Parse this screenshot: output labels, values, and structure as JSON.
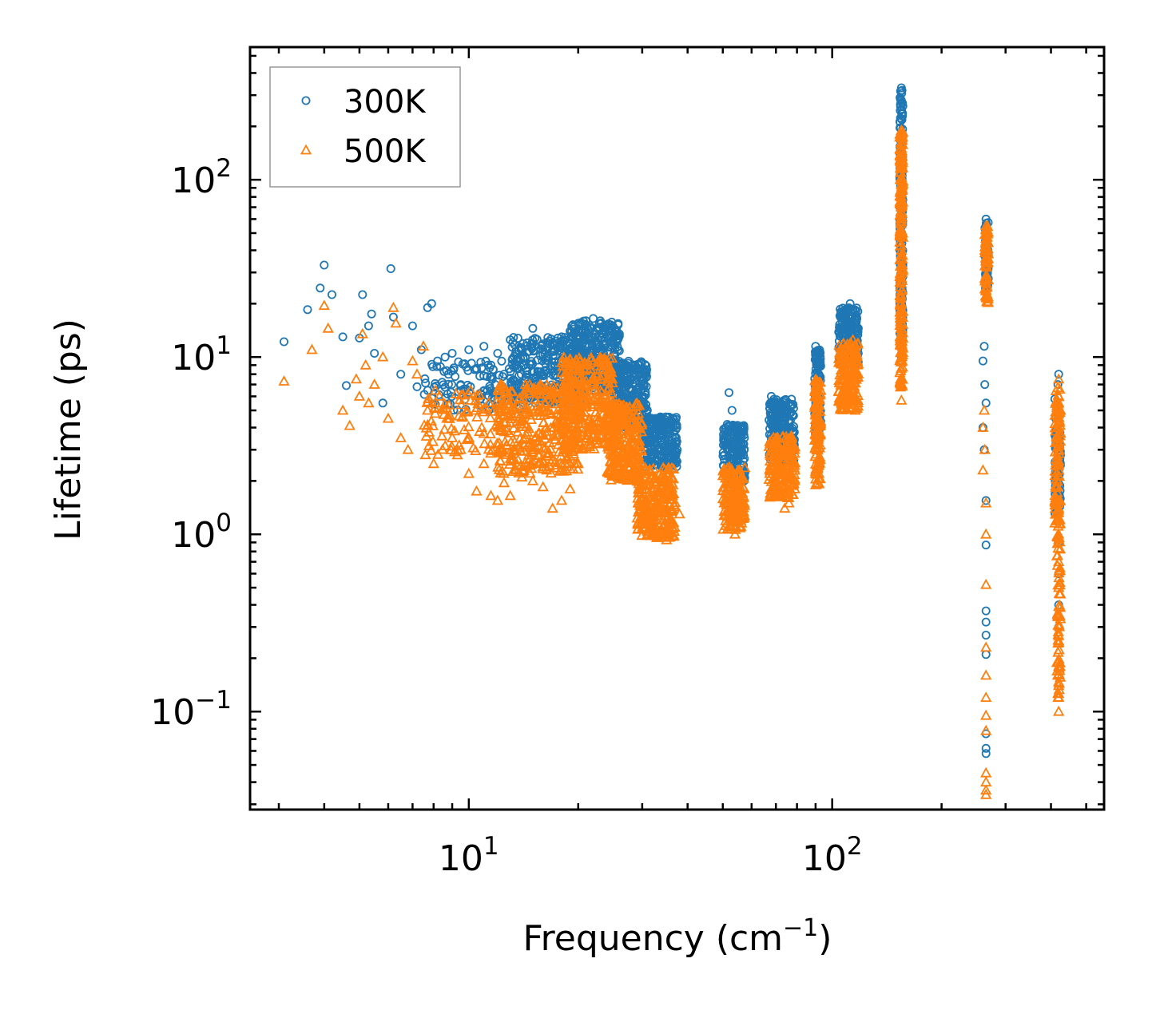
{
  "chart_data": {
    "type": "scatter",
    "xscale": "log",
    "yscale": "log",
    "xlabel": "Frequency (cm",
    "xlabel_sup": "−1",
    "xlabel_end": ")",
    "ylabel": "Lifetime (ps)",
    "xlim": [
      2.5,
      560
    ],
    "ylim": [
      0.028,
      560
    ],
    "x_ticks": [
      {
        "value": 10,
        "base": "10",
        "exp": "1"
      },
      {
        "value": 100,
        "base": "10",
        "exp": "2"
      }
    ],
    "y_ticks": [
      {
        "value": 0.1,
        "base": "10",
        "exp": "−1"
      },
      {
        "value": 1,
        "base": "10",
        "exp": "0"
      },
      {
        "value": 10,
        "base": "10",
        "exp": "1"
      },
      {
        "value": 100,
        "base": "10",
        "exp": "2"
      }
    ],
    "legend_position": "top-left",
    "series": [
      {
        "name": "300K",
        "marker": "circle",
        "color": "#1f77b4",
        "points": [
          [
            3.1,
            12.2
          ],
          [
            3.6,
            18.5
          ],
          [
            3.9,
            24.5
          ],
          [
            4.0,
            33.0
          ],
          [
            4.2,
            22.5
          ],
          [
            4.5,
            13.0
          ],
          [
            4.6,
            6.9
          ],
          [
            5.0,
            12.8
          ],
          [
            5.1,
            22.5
          ],
          [
            5.3,
            15.0
          ],
          [
            5.4,
            17.5
          ],
          [
            5.5,
            10.5
          ],
          [
            5.8,
            5.5
          ],
          [
            6.1,
            31.5
          ],
          [
            6.2,
            16.8
          ],
          [
            6.5,
            8.0
          ],
          [
            7.0,
            15.0
          ],
          [
            7.2,
            6.8
          ],
          [
            7.4,
            11.0
          ],
          [
            7.7,
            19.0
          ],
          [
            7.9,
            20.0
          ],
          [
            8.2,
            9.5
          ],
          [
            8.6,
            10.0
          ],
          [
            9.0,
            10.5
          ],
          [
            9.5,
            7.0
          ],
          [
            10.0,
            11.0
          ],
          [
            10.5,
            8.5
          ],
          [
            11.0,
            11.5
          ],
          [
            11.5,
            9.0
          ],
          [
            12.0,
            10.5
          ],
          [
            12.5,
            8.0
          ],
          [
            13.0,
            12.5
          ],
          [
            13.5,
            9.5
          ],
          [
            14.0,
            11.0
          ],
          [
            15.0,
            14.5
          ],
          [
            16.0,
            11.0
          ],
          [
            17.0,
            12.0
          ],
          [
            18.0,
            13.0
          ],
          [
            19.0,
            14.0
          ],
          [
            20.0,
            15.5
          ],
          [
            21.0,
            16.0
          ],
          [
            22.0,
            16.5
          ],
          [
            23.0,
            16.0
          ],
          [
            24.0,
            15.0
          ],
          [
            25.0,
            12.0
          ],
          [
            27.0,
            8.5
          ],
          [
            29.0,
            6.5
          ],
          [
            31.0,
            5.0
          ],
          [
            33.0,
            4.5
          ],
          [
            35.0,
            4.2
          ],
          [
            37.0,
            3.5
          ],
          [
            52.0,
            6.3
          ],
          [
            53.0,
            5.0
          ],
          [
            54.0,
            4.0
          ],
          [
            55.0,
            3.8
          ],
          [
            56.0,
            3.2
          ],
          [
            57.0,
            2.8
          ],
          [
            68.0,
            6.0
          ],
          [
            70.0,
            5.5
          ],
          [
            72.0,
            5.2
          ],
          [
            74.0,
            4.8
          ],
          [
            76.0,
            4.4
          ],
          [
            78.0,
            3.5
          ],
          [
            90.0,
            11.5
          ],
          [
            91.0,
            10.5
          ],
          [
            92.0,
            9.5
          ],
          [
            105.0,
            14.5
          ],
          [
            108.0,
            16.0
          ],
          [
            110.0,
            18.0
          ],
          [
            112.0,
            20.0
          ],
          [
            114.0,
            17.0
          ],
          [
            118.0,
            14.5
          ],
          [
            155.0,
            330.0
          ],
          [
            155.0,
            280.0
          ],
          [
            155.0,
            220.0
          ],
          [
            155.0,
            150.0
          ],
          [
            155.0,
            80.0
          ],
          [
            155.0,
            40.0
          ],
          [
            155.0,
            20.0
          ],
          [
            155.0,
            10.0
          ],
          [
            265.0,
            60.0
          ],
          [
            265.0,
            48.0
          ],
          [
            265.0,
            38.0
          ],
          [
            265.0,
            30.0
          ],
          [
            262.0,
            11.5
          ],
          [
            260.0,
            9.5
          ],
          [
            263.0,
            7.0
          ],
          [
            265.0,
            5.5
          ],
          [
            260.0,
            4.0
          ],
          [
            262.0,
            3.0
          ],
          [
            265.0,
            1.55
          ],
          [
            265.0,
            0.87
          ],
          [
            265.0,
            0.37
          ],
          [
            265.0,
            0.32
          ],
          [
            265.0,
            0.27
          ],
          [
            265.0,
            0.21
          ],
          [
            265.0,
            0.075
          ],
          [
            265.0,
            0.062
          ],
          [
            265.0,
            0.058
          ],
          [
            420.0,
            8.0
          ],
          [
            418.0,
            7.0
          ],
          [
            410.0,
            5.8
          ],
          [
            412.0,
            4.5
          ],
          [
            420.0,
            3.5
          ],
          [
            425.0,
            2.8
          ],
          [
            420.0,
            2.2
          ],
          [
            420.0,
            1.5
          ],
          [
            420.0,
            0.9
          ],
          [
            420.0,
            0.6
          ],
          [
            420.0,
            0.4
          ],
          [
            420.0,
            0.3
          ]
        ],
        "clusters": [
          {
            "x": [
              7.5,
              14
            ],
            "y": [
              5.0,
              9.5
            ],
            "n": 110
          },
          {
            "x": [
              13,
              21
            ],
            "y": [
              5.5,
              13.0
            ],
            "n": 300
          },
          {
            "x": [
              19,
              26
            ],
            "y": [
              6.5,
              16.0
            ],
            "n": 320
          },
          {
            "x": [
              25,
              31
            ],
            "y": [
              4.0,
              9.5
            ],
            "n": 260
          },
          {
            "x": [
              30,
              37.5
            ],
            "y": [
              2.4,
              4.6
            ],
            "n": 240
          },
          {
            "x": [
              50,
              57.5
            ],
            "y": [
              2.0,
              4.2
            ],
            "n": 170
          },
          {
            "x": [
              67,
              79
            ],
            "y": [
              2.6,
              5.8
            ],
            "n": 200
          },
          {
            "x": [
              89.5,
              93
            ],
            "y": [
              3.5,
              11.0
            ],
            "n": 120
          },
          {
            "x": [
              104,
              118
            ],
            "y": [
              9.0,
              19.0
            ],
            "n": 170
          },
          {
            "x": [
              153.5,
              156.5
            ],
            "y": [
              12.0,
              320.0
            ],
            "n": 220
          },
          {
            "x": [
              263,
              269
            ],
            "y": [
              24.0,
              58.0
            ],
            "n": 60
          },
          {
            "x": [
              410,
              425
            ],
            "y": [
              1.3,
              4.0
            ],
            "n": 90
          }
        ]
      },
      {
        "name": "500K",
        "marker": "triangle",
        "color": "#ff7f0e",
        "points": [
          [
            3.1,
            7.3
          ],
          [
            3.7,
            11.0
          ],
          [
            4.0,
            19.5
          ],
          [
            4.1,
            14.5
          ],
          [
            4.5,
            5.0
          ],
          [
            4.7,
            4.1
          ],
          [
            4.9,
            7.5
          ],
          [
            5.0,
            6.0
          ],
          [
            5.1,
            13.5
          ],
          [
            5.2,
            9.0
          ],
          [
            5.3,
            5.5
          ],
          [
            5.5,
            7.0
          ],
          [
            5.8,
            10.0
          ],
          [
            6.0,
            4.5
          ],
          [
            6.2,
            19.0
          ],
          [
            6.3,
            15.5
          ],
          [
            6.5,
            3.5
          ],
          [
            6.8,
            3.0
          ],
          [
            7.0,
            9.5
          ],
          [
            7.2,
            8.0
          ],
          [
            7.5,
            11.5
          ],
          [
            7.7,
            5.0
          ],
          [
            8.0,
            2.5
          ],
          [
            8.3,
            6.0
          ],
          [
            8.7,
            4.5
          ],
          [
            9.0,
            3.5
          ],
          [
            9.3,
            2.8
          ],
          [
            9.5,
            3.0
          ],
          [
            10.0,
            2.2
          ],
          [
            10.5,
            1.75
          ],
          [
            11.0,
            2.5
          ],
          [
            11.5,
            1.65
          ],
          [
            12.0,
            1.55
          ],
          [
            12.5,
            1.95
          ],
          [
            13.0,
            1.65
          ],
          [
            14.0,
            2.1
          ],
          [
            15.0,
            2.0
          ],
          [
            16.0,
            1.85
          ],
          [
            17.0,
            1.4
          ],
          [
            18.0,
            1.55
          ],
          [
            19.0,
            1.8
          ],
          [
            20.0,
            2.5
          ],
          [
            21.0,
            3.5
          ],
          [
            23.0,
            10.0
          ],
          [
            24.0,
            9.5
          ],
          [
            26.0,
            4.5
          ],
          [
            28.0,
            3.0
          ],
          [
            30.0,
            2.0
          ],
          [
            32.0,
            1.4
          ],
          [
            33.0,
            1.0
          ],
          [
            35.0,
            0.93
          ],
          [
            36.0,
            1.05
          ],
          [
            38.0,
            1.3
          ],
          [
            52.0,
            1.1
          ],
          [
            54.0,
            1.0
          ],
          [
            56.0,
            1.2
          ],
          [
            70.0,
            1.8
          ],
          [
            72.0,
            1.65
          ],
          [
            74.0,
            1.4
          ],
          [
            76.0,
            1.5
          ],
          [
            78.0,
            1.9
          ],
          [
            90.0,
            1.9
          ],
          [
            92.0,
            2.2
          ],
          [
            106.0,
            5.5
          ],
          [
            110.0,
            8.0
          ],
          [
            112.0,
            10.0
          ],
          [
            114.0,
            12.5
          ],
          [
            116.0,
            8.5
          ],
          [
            155.0,
            190.0
          ],
          [
            155.0,
            120.0
          ],
          [
            155.0,
            70.0
          ],
          [
            155.0,
            40.0
          ],
          [
            155.0,
            20.0
          ],
          [
            155.0,
            10.0
          ],
          [
            155.0,
            7.0
          ],
          [
            155.0,
            5.7
          ],
          [
            265.0,
            55.0
          ],
          [
            265.0,
            45.0
          ],
          [
            265.0,
            35.0
          ],
          [
            265.0,
            28.0
          ],
          [
            264.0,
            22.0
          ],
          [
            262.0,
            5.0
          ],
          [
            260.0,
            4.0
          ],
          [
            263.0,
            3.0
          ],
          [
            260.0,
            2.3
          ],
          [
            265.0,
            1.5
          ],
          [
            265.0,
            1.0
          ],
          [
            265.0,
            0.52
          ],
          [
            265.0,
            0.23
          ],
          [
            265.0,
            0.16
          ],
          [
            265.0,
            0.12
          ],
          [
            265.0,
            0.095
          ],
          [
            265.0,
            0.078
          ],
          [
            265.0,
            0.045
          ],
          [
            265.0,
            0.04
          ],
          [
            265.0,
            0.036
          ],
          [
            265.0,
            0.034
          ],
          [
            420.0,
            7.5
          ],
          [
            420.0,
            6.0
          ],
          [
            420.0,
            4.0
          ],
          [
            420.0,
            2.5
          ],
          [
            420.0,
            1.5
          ],
          [
            420.0,
            1.0
          ],
          [
            420.0,
            0.7
          ],
          [
            420.0,
            0.5
          ],
          [
            420.0,
            0.35
          ],
          [
            420.0,
            0.25
          ],
          [
            420.0,
            0.18
          ],
          [
            420.0,
            0.14
          ],
          [
            420.0,
            0.12
          ],
          [
            420.0,
            0.1
          ]
        ],
        "clusters": [
          {
            "x": [
              7.5,
              13
            ],
            "y": [
              2.8,
              6.5
            ],
            "n": 110
          },
          {
            "x": [
              12,
              20
            ],
            "y": [
              2.2,
              7.0
            ],
            "n": 330
          },
          {
            "x": [
              18,
              25
            ],
            "y": [
              3.0,
              10.0
            ],
            "n": 330
          },
          {
            "x": [
              24,
              30
            ],
            "y": [
              2.0,
              5.5
            ],
            "n": 260
          },
          {
            "x": [
              29,
              37
            ],
            "y": [
              0.95,
              2.4
            ],
            "n": 260
          },
          {
            "x": [
              50,
              57.5
            ],
            "y": [
              1.05,
              2.4
            ],
            "n": 180
          },
          {
            "x": [
              67,
              79
            ],
            "y": [
              1.6,
              3.6
            ],
            "n": 200
          },
          {
            "x": [
              89.5,
              93
            ],
            "y": [
              1.9,
              7.5
            ],
            "n": 120
          },
          {
            "x": [
              104,
              118
            ],
            "y": [
              5.0,
              12.0
            ],
            "n": 170
          },
          {
            "x": [
              153.5,
              156.5
            ],
            "y": [
              6.5,
              190.0
            ],
            "n": 220
          },
          {
            "x": [
              263,
              269
            ],
            "y": [
              20.0,
              55.0
            ],
            "n": 60
          },
          {
            "x": [
              410,
              425
            ],
            "y": [
              1.1,
              7.0
            ],
            "n": 100
          },
          {
            "x": [
              415,
              425
            ],
            "y": [
              0.12,
              1.0
            ],
            "n": 60
          }
        ]
      }
    ]
  }
}
